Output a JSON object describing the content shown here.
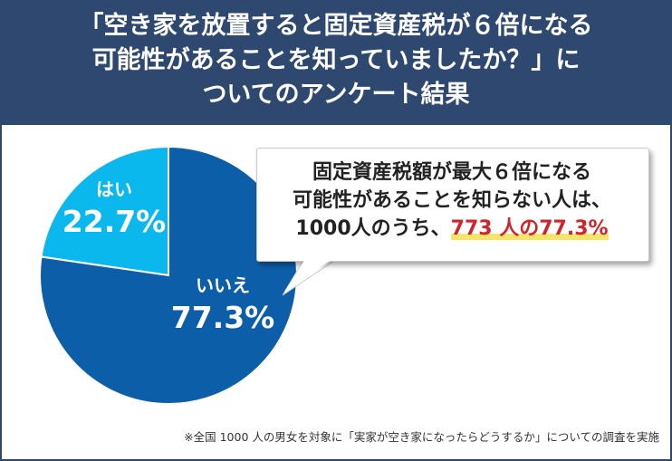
{
  "header": {
    "title_lines": [
      "「空き家を放置すると固定資産税が６倍になる",
      "可能性があることを知っていましたか？」に",
      "ついてのアンケート結果"
    ]
  },
  "chart_data": {
    "type": "pie",
    "slices": [
      {
        "label": "はい",
        "value": 22.7,
        "value_label": "22.7%",
        "color": "#0bb8ee"
      },
      {
        "label": "いいえ",
        "value": 77.3,
        "value_label": "77.3%",
        "color": "#0d5ea8"
      }
    ]
  },
  "callout": {
    "line1": "固定資産税額が最大６倍になる",
    "line2": "可能性があることを知らない人は、",
    "line3_prefix": "1000人のうち、",
    "line3_highlight": "773 人の77.3%"
  },
  "footnote": "※全国 1000 人の男女を対象に「実家が空き家になったらどうするか」についての調査を実施"
}
